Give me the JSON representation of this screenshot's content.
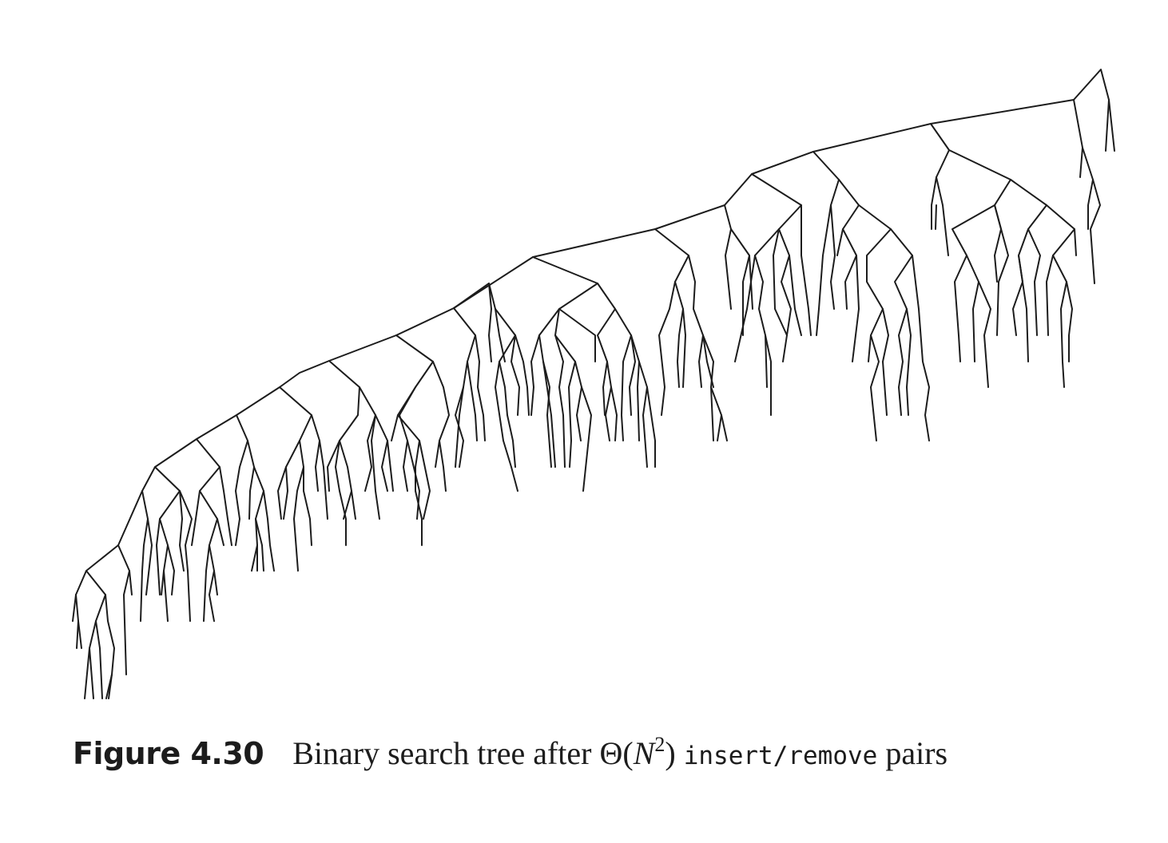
{
  "figure": {
    "label": "Figure 4.30",
    "caption_prefix": "Binary search tree after ",
    "caption_theta": "Θ(",
    "caption_n": "N",
    "caption_exp": "2",
    "caption_close": ") ",
    "caption_op1": "insert",
    "caption_slash": "/",
    "caption_op2": "remove",
    "caption_suffix": " pairs"
  },
  "colors": {
    "ink": "#1c1c1c",
    "background": "#ffffff"
  }
}
